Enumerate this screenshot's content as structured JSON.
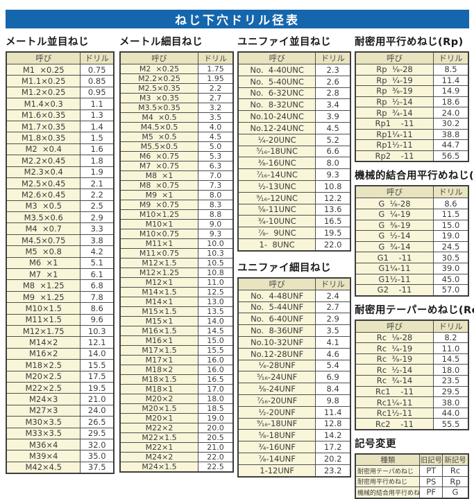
{
  "title": "ねじ下穴ドリル径表",
  "colors": {
    "title_bar_bg": "#1566ad",
    "title_text": "#ffffff",
    "header_cell_bg": "#e9e4c0",
    "name_cell_bg": "#f9f5d9",
    "drill_cell_bg": "#ffffff",
    "border": "#4d4d4d"
  },
  "table_headers": {
    "name": "呼び",
    "drill": "ドリル"
  },
  "sections": {
    "metric_coarse": {
      "title": "メートル並目ねじ",
      "rows": [
        [
          "M1  ×0.25",
          "0.75"
        ],
        [
          "M1.1×0.25",
          "0.85"
        ],
        [
          "M1.2×0.25",
          "0.95"
        ],
        [
          "M1.4×0.3",
          "1.1"
        ],
        [
          "M1.6×0.35",
          "1.3"
        ],
        [
          "M1.7×0.35",
          "1.4"
        ],
        [
          "M1.8×0.35",
          "1.5"
        ],
        [
          "M2  ×0.4",
          "1.6"
        ],
        [
          "M2.2×0.45",
          "1.8"
        ],
        [
          "M2.3×0.4",
          "1.9"
        ],
        [
          "M2.5×0.45",
          "2.1"
        ],
        [
          "M2.6×0.45",
          "2.2"
        ],
        [
          "M3  ×0.5",
          "2.5"
        ],
        [
          "M3.5×0.6",
          "2.9"
        ],
        [
          "M4  ×0.7",
          "3.3"
        ],
        [
          "M4.5×0.75",
          "3.8"
        ],
        [
          "M5  ×0.8",
          "4.2"
        ],
        [
          "M6  ×1",
          "5.1"
        ],
        [
          "M7  ×1",
          "6.1"
        ],
        [
          "M8  ×1.25",
          "6.8"
        ],
        [
          "M9  ×1.25",
          "7.8"
        ],
        [
          "M10×1.5",
          "8.6"
        ],
        [
          "M11×1.5",
          "9.6"
        ],
        [
          "M12×1.75",
          "10.3"
        ],
        [
          "M14×2",
          "12.1"
        ],
        [
          "M16×2",
          "14.0"
        ],
        [
          "M18×2.5",
          "15.5"
        ],
        [
          "M20×2.5",
          "17.5"
        ],
        [
          "M22×2.5",
          "19.5"
        ],
        [
          "M24×3",
          "21.0"
        ],
        [
          "M27×3",
          "24.0"
        ],
        [
          "M30×3.5",
          "26.5"
        ],
        [
          "M33×3.5",
          "29.5"
        ],
        [
          "M36×4",
          "32.0"
        ],
        [
          "M39×4",
          "35.0"
        ],
        [
          "M42×4.5",
          "37.5"
        ]
      ]
    },
    "metric_fine": {
      "title": "メートル細目ねじ",
      "rows": [
        [
          "M2  ×0.25",
          "1.75"
        ],
        [
          "M2.2×0.25",
          "1.95"
        ],
        [
          "M2.5×0.35",
          "2.2"
        ],
        [
          "M3  ×0.35",
          "2.7"
        ],
        [
          "M3.5×0.35",
          "3.2"
        ],
        [
          "M4  ×0.5",
          "3.5"
        ],
        [
          "M4.5×0.5",
          "4.0"
        ],
        [
          "M5  ×0.5",
          "4.5"
        ],
        [
          "M5.5×0.5",
          "5.0"
        ],
        [
          "M6  ×0.75",
          "5.3"
        ],
        [
          "M7  ×0.75",
          "6.3"
        ],
        [
          "M8  ×1",
          "7.0"
        ],
        [
          "M8  ×0.75",
          "7.3"
        ],
        [
          "M9  ×1",
          "8.0"
        ],
        [
          "M9  ×0.75",
          "8.3"
        ],
        [
          "M10×1.25",
          "8.8"
        ],
        [
          "M10×1",
          "9.0"
        ],
        [
          "M10×0.75",
          "9.3"
        ],
        [
          "M11×1",
          "10.0"
        ],
        [
          "M11×0.75",
          "10.3"
        ],
        [
          "M12×1.5",
          "10.5"
        ],
        [
          "M12×1.25",
          "10.8"
        ],
        [
          "M12×1",
          "11.0"
        ],
        [
          "M14×1.5",
          "12.5"
        ],
        [
          "M14×1",
          "13.0"
        ],
        [
          "M15×1.5",
          "13.5"
        ],
        [
          "M15×1",
          "14.0"
        ],
        [
          "M16×1.5",
          "14.5"
        ],
        [
          "M16×1",
          "15.0"
        ],
        [
          "M17×1.5",
          "15.5"
        ],
        [
          "M17×1",
          "16.0"
        ],
        [
          "M18×2",
          "16.0"
        ],
        [
          "M18×1.5",
          "16.5"
        ],
        [
          "M18×1",
          "17.0"
        ],
        [
          "M20×2",
          "18.0"
        ],
        [
          "M20×1.5",
          "18.5"
        ],
        [
          "M20×1",
          "19.0"
        ],
        [
          "M22×2",
          "20.0"
        ],
        [
          "M22×1.5",
          "20.5"
        ],
        [
          "M22×1",
          "21.0"
        ],
        [
          "M24×2",
          "22.0"
        ],
        [
          "M24×1.5",
          "22.5"
        ]
      ]
    },
    "unified_coarse": {
      "title": "ユニファイ並目ねじ",
      "rows": [
        [
          "No.  4-40UNC",
          "2.3"
        ],
        [
          "No.  5-40UNC",
          "2.6"
        ],
        [
          "No.  6-32UNC",
          "2.8"
        ],
        [
          "No.  8-32UNC",
          "3.4"
        ],
        [
          "No.10-24UNC",
          "3.9"
        ],
        [
          "No.12-24UNC",
          "4.5"
        ],
        [
          "¹⁄₄-20UNC",
          "5.2"
        ],
        [
          "⁵⁄₁₆-18UNC",
          "6.6"
        ],
        [
          "³⁄₈-16UNC",
          "8.0"
        ],
        [
          "⁷⁄₁₆-14UNC",
          "9.3"
        ],
        [
          "¹⁄₂-13UNC",
          "10.8"
        ],
        [
          "⁹⁄₁₆-12UNC",
          "12.2"
        ],
        [
          "⁵⁄₈-11UNC",
          "13.6"
        ],
        [
          "³⁄₄-10UNC",
          "16.5"
        ],
        [
          "⁷⁄₈-  9UNC",
          "19.5"
        ],
        [
          "1-  8UNC",
          "22.0"
        ]
      ]
    },
    "unified_fine": {
      "title": "ユニファイ細目ねじ",
      "rows": [
        [
          "No.  4-48UNF",
          "2.4"
        ],
        [
          "No.  5-44UNF",
          "2.7"
        ],
        [
          "No.  6-40UNF",
          "2.9"
        ],
        [
          "No.  8-36UNF",
          "3.5"
        ],
        [
          "No.10-32UNF",
          "4.1"
        ],
        [
          "No.12-28UNF",
          "4.6"
        ],
        [
          "¹⁄₄-28UNF",
          "5.4"
        ],
        [
          "⁵⁄₁₆-24UNF",
          "6.9"
        ],
        [
          "³⁄₈-24UNF",
          "8.4"
        ],
        [
          "⁷⁄₁₆-20UNF",
          "9.8"
        ],
        [
          "¹⁄₂-20UNF",
          "11.4"
        ],
        [
          "⁹⁄₁₆-18UNF",
          "12.8"
        ],
        [
          "⁵⁄₈-18UNF",
          "14.2"
        ],
        [
          "³⁄₄-16UNF",
          "17.2"
        ],
        [
          "⁷⁄₈-14UNF",
          "20.2"
        ],
        [
          "1-12UNF",
          "23.2"
        ]
      ]
    },
    "rp": {
      "title": "耐密用平行めねじ(Rp)",
      "rows": [
        [
          "Rp  ¹⁄₈-28",
          "8.5"
        ],
        [
          "Rp  ¹⁄₄-19",
          "11.4"
        ],
        [
          "Rp  ³⁄₈-19",
          "14.9"
        ],
        [
          "Rp  ¹⁄₂-14",
          "18.6"
        ],
        [
          "Rp  ³⁄₄-14",
          "24.0"
        ],
        [
          "Rp1    -11",
          "30.2"
        ],
        [
          "Rp1¹⁄₄-11",
          "38.8"
        ],
        [
          "Rp1¹⁄₂-11",
          "44.7"
        ],
        [
          "Rp2    -11",
          "56.5"
        ]
      ]
    },
    "g": {
      "title": "機械的結合用平行めねじ(G)",
      "rows": [
        [
          "G  ¹⁄₈-28",
          "8.6"
        ],
        [
          "G  ¹⁄₄-19",
          "11.5"
        ],
        [
          "G  ³⁄₈-19",
          "15.0"
        ],
        [
          "G  ¹⁄₂-14",
          "19.0"
        ],
        [
          "G  ³⁄₄-14",
          "24.5"
        ],
        [
          "G1    -11",
          "30.5"
        ],
        [
          "G1¹⁄₄-11",
          "39.0"
        ],
        [
          "G1¹⁄₂-11",
          "45.0"
        ],
        [
          "G2    -11",
          "57.0"
        ]
      ]
    },
    "rc": {
      "title": "耐密用テーパーめねじ(Rc)",
      "rows": [
        [
          "Rc  ¹⁄₈-28",
          "8.2"
        ],
        [
          "Rc  ¹⁄₄-19",
          "11.0"
        ],
        [
          "Rc  ³⁄₈-19",
          "14.5"
        ],
        [
          "Rc  ¹⁄₂-14",
          "18.0"
        ],
        [
          "Rc  ³⁄₄-14",
          "23.5"
        ],
        [
          "Rc1    -11",
          "29.5"
        ],
        [
          "Rc1¹⁄₄-11",
          "38.0"
        ],
        [
          "Rc1¹⁄₂-11",
          "44.0"
        ],
        [
          "Rc2    -11",
          "55.5"
        ]
      ]
    },
    "symbol_change": {
      "title": "記号変更",
      "headers": {
        "type": "種類",
        "old": "旧記号",
        "new": "新記号"
      },
      "rows": [
        [
          "耐密用テーパめねじ",
          "PT",
          "Rc"
        ],
        [
          "耐密用平行めねじ",
          "PS",
          "Rp"
        ],
        [
          "機械的結合用平行めねじ",
          "PF",
          "G"
        ]
      ]
    }
  }
}
